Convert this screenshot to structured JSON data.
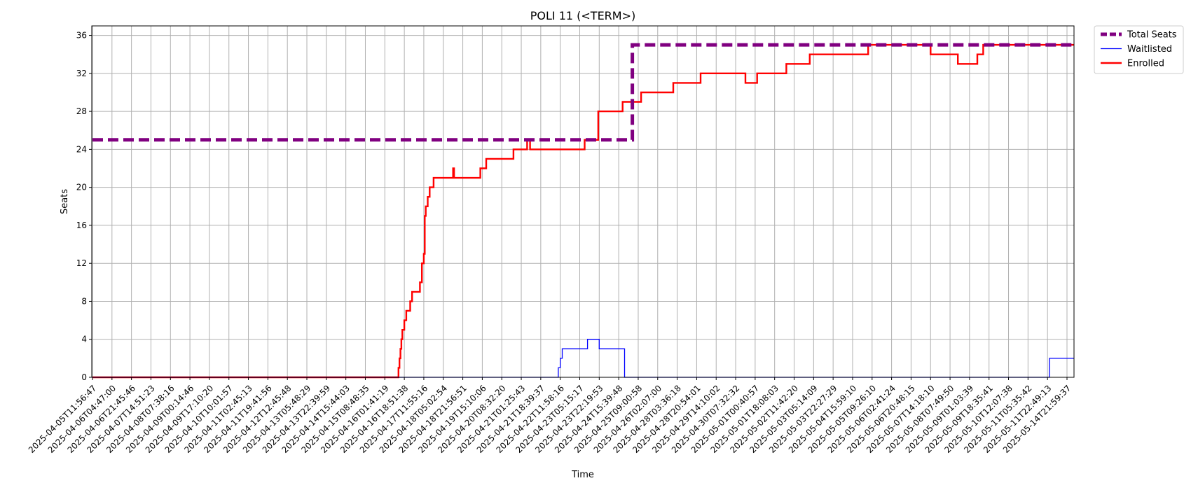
{
  "chart_data": {
    "type": "line",
    "title": "POLI 11 (<TERM>)",
    "xlabel": "Time",
    "ylabel": "Seats",
    "ylim": [
      0,
      37
    ],
    "yticks": [
      0,
      4,
      8,
      12,
      16,
      20,
      24,
      28,
      32,
      36
    ],
    "grid": true,
    "legend_position": "outside-top-right",
    "x_tick_labels": [
      "2025-04-05T11:56:47",
      "2025-04-06T04:47:00",
      "2025-04-06T21:45:46",
      "2025-04-07T14:51:23",
      "2025-04-08T07:38:16",
      "2025-04-09T00:14:46",
      "2025-04-09T17:10:20",
      "2025-04-10T10:01:57",
      "2025-04-11T02:45:13",
      "2025-04-11T19:41:56",
      "2025-04-12T12:45:48",
      "2025-04-13T05:48:29",
      "2025-04-13T22:39:59",
      "2025-04-14T15:44:03",
      "2025-04-15T08:48:35",
      "2025-04-16T01:41:19",
      "2025-04-16T18:51:38",
      "2025-04-17T11:55:16",
      "2025-04-18T05:02:54",
      "2025-04-18T21:56:51",
      "2025-04-19T15:10:06",
      "2025-04-20T08:32:20",
      "2025-04-21T01:25:43",
      "2025-04-21T18:39:37",
      "2025-04-22T11:58:16",
      "2025-04-23T05:15:17",
      "2025-04-23T22:19:53",
      "2025-04-24T15:39:48",
      "2025-04-25T09:00:58",
      "2025-04-26T02:07:00",
      "2025-04-28T03:36:18",
      "2025-04-28T20:54:01",
      "2025-04-29T14:10:02",
      "2025-04-30T07:32:32",
      "2025-05-01T00:40:57",
      "2025-05-01T18:08:03",
      "2025-05-02T11:42:20",
      "2025-05-03T05:14:09",
      "2025-05-03T22:27:29",
      "2025-05-04T15:59:10",
      "2025-05-05T09:26:10",
      "2025-05-06T02:41:24",
      "2025-05-06T20:48:15",
      "2025-05-07T14:18:10",
      "2025-05-08T07:49:50",
      "2025-05-09T01:03:39",
      "2025-05-09T18:35:41",
      "2025-05-10T12:07:38",
      "2025-05-11T05:35:42",
      "2025-05-11T22:49:13",
      "2025-05-14T21:59:37"
    ],
    "series": [
      {
        "name": "Total Seats",
        "color": "#800080",
        "style": "dashed",
        "x": [
          0,
          27.7,
          27.7,
          50.35
        ],
        "y": [
          25,
          25,
          35,
          35
        ]
      },
      {
        "name": "Waitlisted",
        "color": "#0000ff",
        "style": "solid",
        "x": [
          0,
          23.9,
          23.9,
          24.0,
          24.0,
          24.1,
          24.1,
          25.4,
          25.4,
          26.0,
          26.0,
          27.3,
          27.3,
          49.1,
          49.1,
          50.35
        ],
        "y": [
          0,
          0,
          1,
          1,
          2,
          2,
          3,
          3,
          4,
          4,
          3,
          3,
          0,
          0,
          2,
          2
        ]
      },
      {
        "name": "Enrolled",
        "color": "#ff0000",
        "style": "solid",
        "x": [
          0,
          15.7,
          15.7,
          15.75,
          15.75,
          15.8,
          15.8,
          15.85,
          15.85,
          15.9,
          15.9,
          16.0,
          16.0,
          16.1,
          16.1,
          16.3,
          16.3,
          16.4,
          16.4,
          16.8,
          16.8,
          16.9,
          16.9,
          17.0,
          17.0,
          17.05,
          17.05,
          17.1,
          17.1,
          17.2,
          17.2,
          17.3,
          17.3,
          17.5,
          17.5,
          18.5,
          18.5,
          18.55,
          18.55,
          19.9,
          19.9,
          20.2,
          20.2,
          21.6,
          21.6,
          22.3,
          22.3,
          22.35,
          22.35,
          22.45,
          22.45,
          25.25,
          25.25,
          25.95,
          25.95,
          27.2,
          27.2,
          28.15,
          28.15,
          29.8,
          29.8,
          31.2,
          31.2,
          33.5,
          33.5,
          34.1,
          34.1,
          35.6,
          35.6,
          36.8,
          36.8,
          39.8,
          39.8,
          42.8,
          42.8,
          42.9,
          42.9,
          43.0,
          43.0,
          44.4,
          44.4,
          45.4,
          45.4,
          45.7,
          45.7,
          46.8,
          46.8,
          50.35
        ],
        "y": [
          0,
          0,
          1,
          1,
          2,
          2,
          3,
          3,
          4,
          4,
          5,
          5,
          6,
          6,
          7,
          7,
          8,
          8,
          9,
          9,
          10,
          10,
          12,
          12,
          13,
          13,
          17,
          17,
          18,
          18,
          19,
          19,
          20,
          20,
          21,
          21,
          22,
          22,
          21,
          21,
          22,
          22,
          23,
          23,
          24,
          24,
          25,
          25,
          25,
          25,
          24,
          24,
          25,
          25,
          28,
          28,
          29,
          29,
          30,
          30,
          31,
          31,
          32,
          32,
          31,
          31,
          32,
          32,
          33,
          33,
          34,
          34,
          35,
          35,
          35,
          35,
          35,
          35,
          34,
          34,
          33,
          33,
          34,
          34,
          35,
          35,
          35,
          35
        ]
      }
    ]
  }
}
